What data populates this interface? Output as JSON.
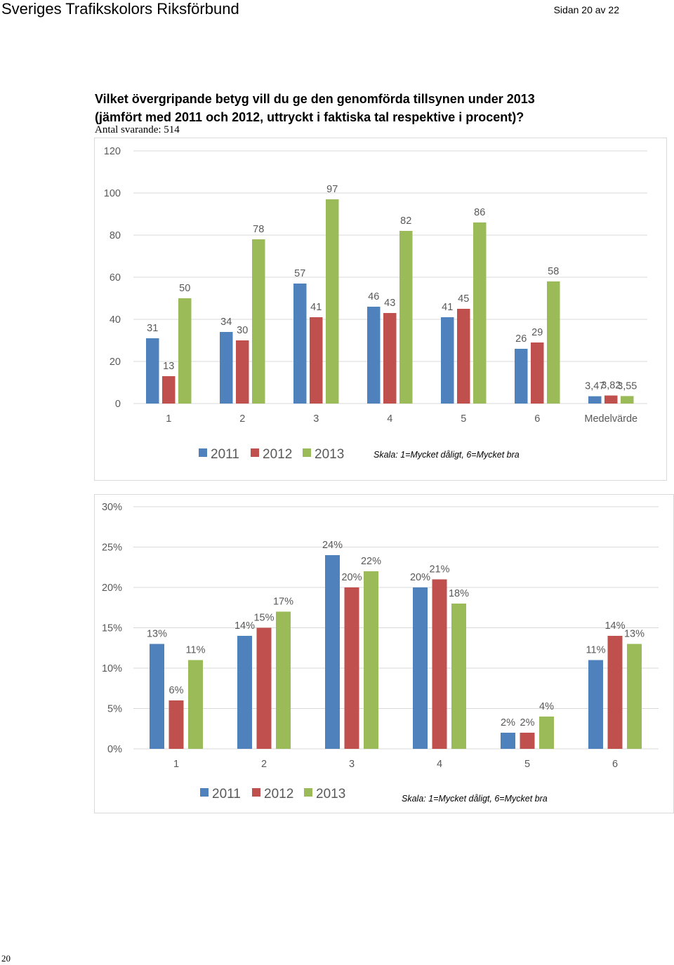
{
  "header": {
    "title": "Sveriges Trafikskolors Riksförbund",
    "page": "Sidan 20 av 22"
  },
  "question": {
    "line1": "Vilket övergripande betyg vill du ge den genomförda tillsynen under 2013",
    "line2": "(jämfört med 2011 och 2012, uttryckt i faktiska tal respektive i procent)?",
    "respondents": "Antal svarande: 514"
  },
  "colors": {
    "2011": "#4f81bd",
    "2012": "#c0504d",
    "2013": "#9bbb59",
    "grid": "#d9d9d9",
    "axis_text": "#595959"
  },
  "chart_data": [
    {
      "type": "bar",
      "categories": [
        "1",
        "2",
        "3",
        "4",
        "5",
        "6",
        "Medelvärde"
      ],
      "series": [
        {
          "name": "2011",
          "values": [
            31,
            34,
            57,
            46,
            41,
            26,
            3.47
          ],
          "labels": [
            "31",
            "34",
            "57",
            "46",
            "41",
            "26",
            "3,47"
          ]
        },
        {
          "name": "2012",
          "values": [
            13,
            30,
            41,
            43,
            45,
            29,
            3.82
          ],
          "labels": [
            "13",
            "30",
            "41",
            "43",
            "45",
            "29",
            "3,82"
          ]
        },
        {
          "name": "2013",
          "values": [
            50,
            78,
            97,
            82,
            86,
            58,
            3.55
          ],
          "labels": [
            "50",
            "78",
            "97",
            "82",
            "86",
            "58",
            "3,55"
          ]
        }
      ],
      "ylim": [
        0,
        120
      ],
      "yticks": [
        0,
        20,
        40,
        60,
        80,
        100,
        120
      ],
      "ytick_labels": [
        "0",
        "20",
        "40",
        "60",
        "80",
        "100",
        "120"
      ],
      "grid": true,
      "legend_position": "bottom",
      "note": "Skala: 1=Mycket dåligt, 6=Mycket bra"
    },
    {
      "type": "bar",
      "categories": [
        "1",
        "2",
        "3",
        "4",
        "5",
        "6"
      ],
      "series": [
        {
          "name": "2011",
          "values": [
            13,
            14,
            24,
            20,
            2,
            11
          ],
          "labels": [
            "13%",
            "14%",
            "24%",
            "20%",
            "2%",
            "11%"
          ]
        },
        {
          "name": "2012",
          "values": [
            6,
            15,
            20,
            21,
            2,
            14
          ],
          "labels": [
            "6%",
            "15%",
            "20%",
            "21%",
            "2%",
            "14%"
          ]
        },
        {
          "name": "2013",
          "values": [
            11,
            17,
            22,
            18,
            4,
            13
          ],
          "labels": [
            "11%",
            "17%",
            "22%",
            "18%",
            "4%",
            "13%"
          ]
        }
      ],
      "ylim": [
        0,
        30
      ],
      "yticks": [
        0,
        5,
        10,
        15,
        20,
        25,
        30
      ],
      "ytick_labels": [
        "0%",
        "5%",
        "10%",
        "15%",
        "20%",
        "25%",
        "30%"
      ],
      "grid": true,
      "legend_position": "bottom",
      "note": "Skala: 1=Mycket dåligt, 6=Mycket bra"
    }
  ],
  "footer": {
    "page_number": "20"
  }
}
